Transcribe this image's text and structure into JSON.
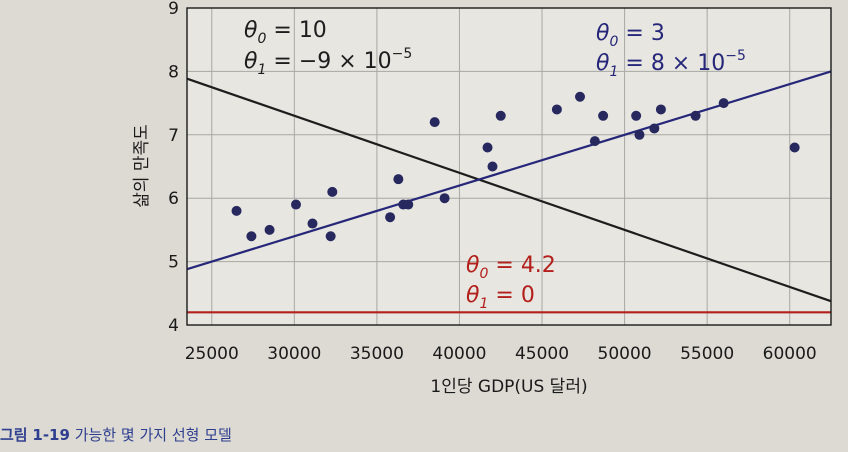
{
  "chart_data": {
    "type": "scatter",
    "xlabel": "1인당 GDP(US 달러)",
    "ylabel": "삶의 만족도",
    "xlim": [
      23500,
      62500
    ],
    "ylim": [
      4,
      9
    ],
    "xticks": [
      25000,
      30000,
      35000,
      40000,
      45000,
      50000,
      55000,
      60000
    ],
    "yticks": [
      4,
      5,
      6,
      7,
      8,
      9
    ],
    "grid": true,
    "points": {
      "x": [
        26500,
        27400,
        28500,
        30100,
        31100,
        32200,
        32300,
        35800,
        36300,
        36600,
        36900,
        38500,
        39100,
        41700,
        42000,
        42500,
        45900,
        47300,
        48200,
        48700,
        50700,
        50900,
        51800,
        52200,
        54300,
        56000,
        60300
      ],
      "y": [
        5.8,
        5.4,
        5.5,
        5.9,
        5.6,
        5.4,
        6.1,
        5.7,
        6.3,
        5.9,
        5.9,
        7.2,
        6.0,
        6.8,
        6.5,
        7.3,
        7.4,
        7.6,
        6.9,
        7.3,
        7.3,
        7.0,
        7.1,
        7.4,
        7.3,
        7.5,
        6.8
      ]
    },
    "series": [
      {
        "theta0": "10",
        "theta1": "−9 × 10",
        "exp": "−5",
        "intercept": 10,
        "slope": -9e-05,
        "color": "#1d1d1d"
      },
      {
        "theta0": "3",
        "theta1": "8 × 10",
        "exp": "−5",
        "intercept": 3,
        "slope": 8e-05,
        "color": "#27277a"
      },
      {
        "theta0": "4.2",
        "theta1": "0",
        "exp": "",
        "intercept": 4.2,
        "slope": 0,
        "color": "#b3201c"
      }
    ]
  },
  "caption": {
    "prefix": "그림",
    "number": "1-19",
    "text": "가능한 몇 가지 선형 모델"
  }
}
